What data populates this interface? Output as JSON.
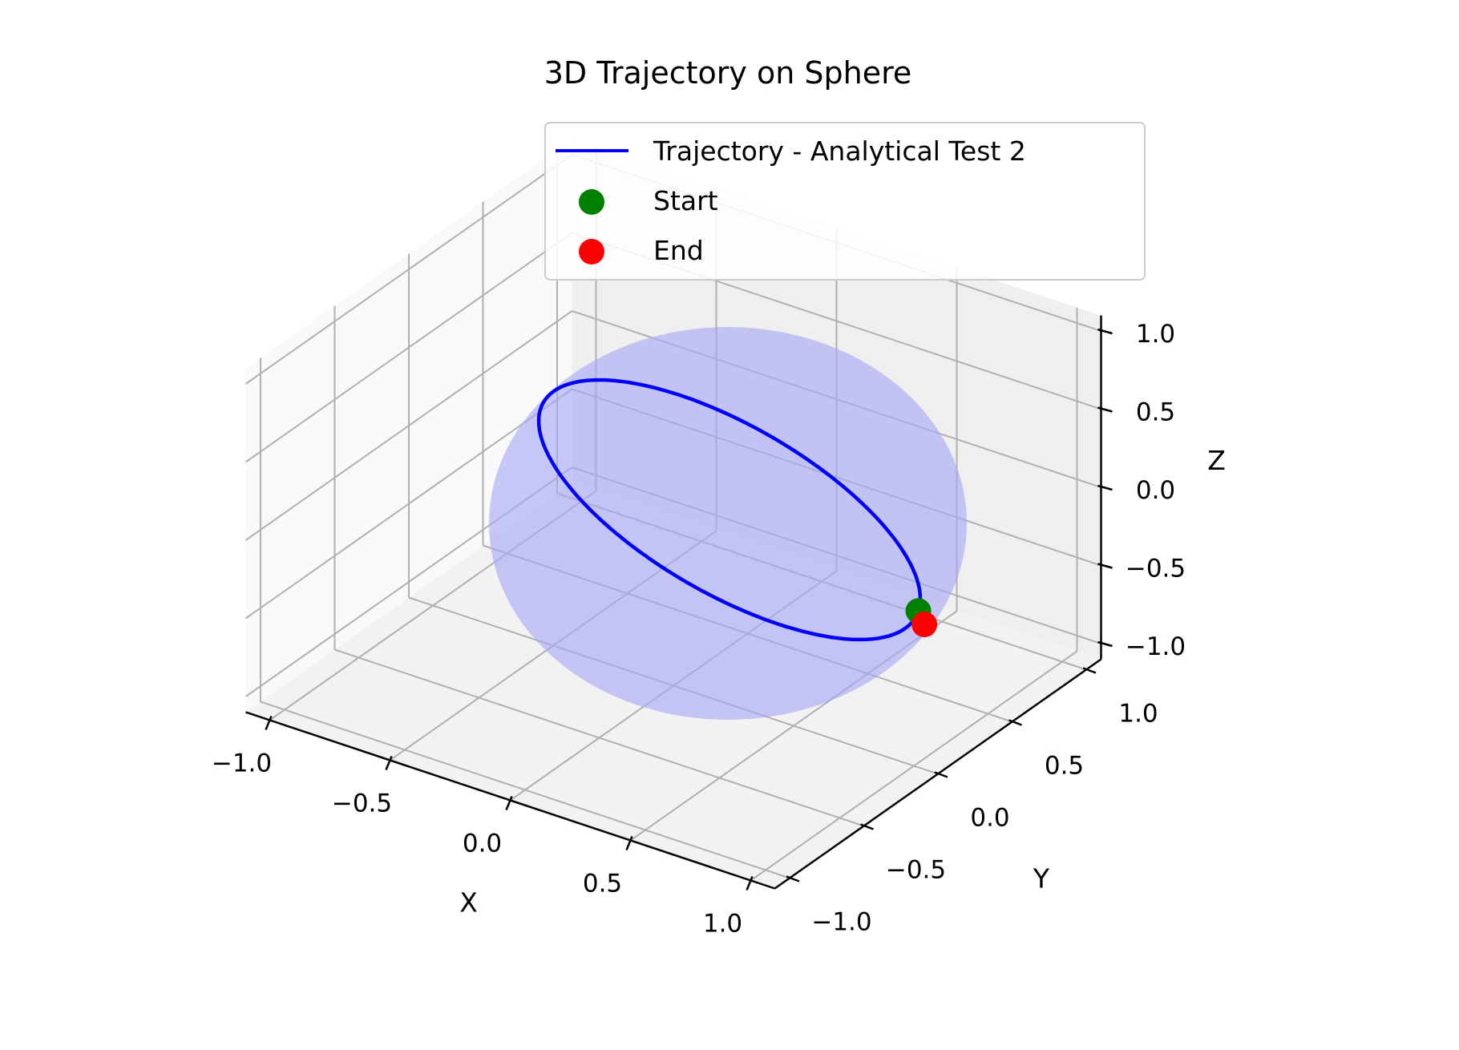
{
  "chart_data": {
    "type": "line",
    "projection": "3d",
    "title": "3D Trajectory on Sphere",
    "xlabel": "X",
    "ylabel": "Y",
    "zlabel": "Z",
    "xlim": [
      -1.1,
      1.1
    ],
    "ylim": [
      -1.1,
      1.1
    ],
    "zlim": [
      -1.1,
      1.1
    ],
    "xticks": [
      "−1.0",
      "−0.5",
      "0.0",
      "0.5",
      "1.0"
    ],
    "yticks": [
      "−1.0",
      "−0.5",
      "0.0",
      "0.5",
      "1.0"
    ],
    "zticks": [
      "−1.0",
      "−0.5",
      "0.0",
      "0.5",
      "1.0"
    ],
    "tick_values": [
      -1.0,
      -0.5,
      0.0,
      0.5,
      1.0
    ],
    "grid": true,
    "legend_position": "top-right",
    "sphere": {
      "radius": 1.0,
      "color": "#a8a8f5"
    },
    "series": [
      {
        "name": "Trajectory - Analytical Test 2",
        "kind": "line",
        "color": "#0000ff",
        "circle": {
          "normal": [
            0.707,
            0.0,
            0.707
          ],
          "radius": 1.0,
          "start_angle_deg": 20
        }
      },
      {
        "name": "Start",
        "kind": "point",
        "color": "#008000",
        "point": [
          0.33,
          0.94,
          -0.33
        ]
      },
      {
        "name": "End",
        "kind": "point",
        "color": "#ff0000",
        "point": [
          0.44,
          0.9,
          -0.44
        ]
      }
    ]
  }
}
